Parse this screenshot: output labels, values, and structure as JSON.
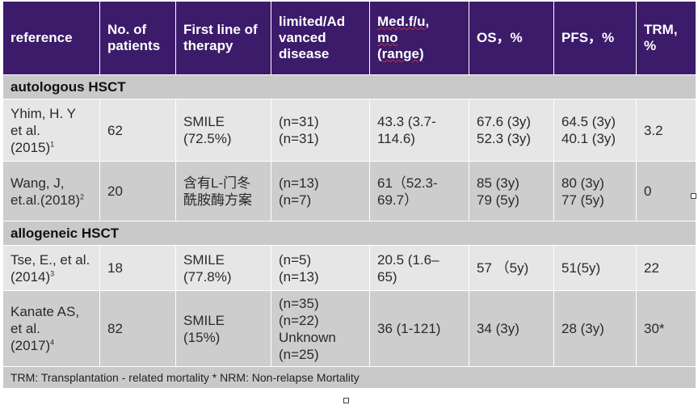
{
  "table": {
    "headers": [
      "reference",
      "No. of\npatients",
      "First line of\ntherapy",
      "limited/Ad\nvanced\ndisease",
      "Med.f/u,\nmo\n(range)",
      "OS，%",
      "PFS，%",
      "TRM,\n%"
    ],
    "sections": [
      {
        "title": "autologous HSCT",
        "rows": [
          {
            "ref": "Yhim, H. Y\net al.\n(2015)",
            "ref_sup": "1",
            "n": "62",
            "therapy": "SMILE\n(72.5%)",
            "disease": "(n=31)\n(n=31)",
            "followup": "43.3 (3.7-\n114.6)",
            "os": "67.6 (3y)\n52.3 (3y)",
            "pfs": "64.5 (3y)\n40.1 (3y)",
            "trm": "3.2"
          },
          {
            "ref": "Wang, J,\net.al.(2018)",
            "ref_sup": "2",
            "n": "20",
            "therapy": "含有L-门冬\n酰胺酶方案",
            "disease": "(n=13)\n(n=7)",
            "followup": "61（52.3-\n69.7）",
            "os": "85 (3y)\n79 (5y)",
            "pfs": "80 (3y)\n77 (5y)",
            "trm": "0"
          }
        ]
      },
      {
        "title": "allogeneic HSCT",
        "rows": [
          {
            "ref": "Tse, E., et al.\n(2014)",
            "ref_sup": "3",
            "n": "18",
            "therapy": "SMILE\n(77.8%)",
            "disease": "(n=5)\n(n=13)",
            "followup": "20.5 (1.6–\n65)",
            "os": "57 （5y)",
            "pfs": "51(5y)",
            "trm": "22"
          },
          {
            "ref": "Kanate AS,\net al.\n(2017)",
            "ref_sup": "4",
            "n": "82",
            "therapy": "SMILE\n(15%)",
            "disease": "(n=35)\n(n=22)\nUnknown\n(n=25)",
            "followup": "36 (1-121)",
            "os": "34 (3y)",
            "pfs": "28 (3y)",
            "trm": "30*"
          }
        ]
      }
    ],
    "footnote": "TRM: Transplantation - related mortality  * NRM: Non-relapse Mortality"
  }
}
